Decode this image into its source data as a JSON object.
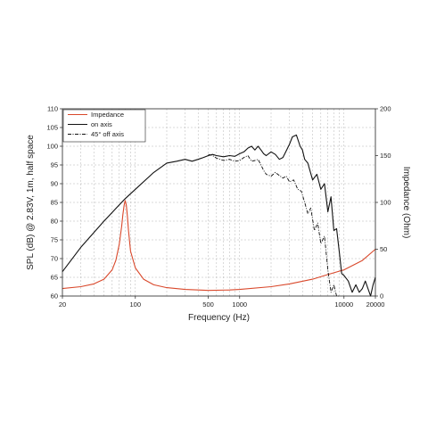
{
  "chart_data": {
    "type": "line",
    "title": "",
    "xlabel": "Frequency (Hz)",
    "ylabel": "SPL (dB) @ 2.83V, 1m, half space",
    "y2label": "Impedance (Ohm)",
    "xscale": "log",
    "xlim": [
      20,
      20000
    ],
    "ylim": [
      60,
      110
    ],
    "y2lim": [
      0,
      200
    ],
    "grid": true,
    "legend_position": "top-left",
    "x_ticks": [
      {
        "value": 20,
        "label": "20"
      },
      {
        "value": 100,
        "label": "100"
      },
      {
        "value": 500,
        "label": "500"
      },
      {
        "value": 1000,
        "label": "1000"
      },
      {
        "value": 10000,
        "label": "10000"
      },
      {
        "value": 20000,
        "label": "20000"
      }
    ],
    "y_ticks": [
      "60",
      "65",
      "70",
      "75",
      "80",
      "85",
      "90",
      "95",
      "100",
      "105",
      "110"
    ],
    "y2_ticks": [
      "0",
      "50",
      "100",
      "150",
      "200"
    ],
    "colors": {
      "impedance": "#d9482b",
      "on_axis": "#111111",
      "off_axis": "#111111",
      "grid": "#b4b4b4"
    },
    "series": [
      {
        "name": "Impedance",
        "axis": "right",
        "style": "solid",
        "x": [
          20,
          30,
          40,
          50,
          60,
          65,
          70,
          74,
          76,
          78,
          80,
          82,
          84,
          86,
          90,
          100,
          120,
          150,
          200,
          300,
          500,
          800,
          1000,
          2000,
          3000,
          5000,
          7000,
          10000,
          15000,
          20000
        ],
        "y": [
          8,
          10,
          13,
          18,
          28,
          38,
          55,
          75,
          87,
          97,
          102,
          97,
          85,
          70,
          48,
          30,
          18,
          12,
          9,
          7,
          6,
          6.5,
          7,
          10,
          13,
          18,
          23,
          28,
          38,
          50
        ]
      },
      {
        "name": "on axis",
        "axis": "left",
        "style": "solid",
        "x": [
          20,
          30,
          50,
          80,
          100,
          150,
          200,
          250,
          300,
          350,
          400,
          450,
          500,
          550,
          600,
          700,
          800,
          900,
          1000,
          1100,
          1200,
          1300,
          1400,
          1500,
          1600,
          1700,
          1800,
          2000,
          2200,
          2400,
          2600,
          2800,
          3000,
          3200,
          3500,
          3800,
          4000,
          4200,
          4500,
          5000,
          5500,
          6000,
          6500,
          7000,
          7500,
          8000,
          8500,
          9000,
          9500,
          10000,
          11000,
          12000,
          13000,
          14000,
          15000,
          16000,
          18000,
          19000,
          20000
        ],
        "y": [
          66.5,
          73,
          80,
          86,
          88.5,
          93,
          95.5,
          96,
          96.5,
          96,
          96.5,
          97,
          97.5,
          97.8,
          97.5,
          97.2,
          97.5,
          97.3,
          98,
          98.5,
          99.5,
          100,
          99,
          100,
          99,
          98,
          97.5,
          98.5,
          97.8,
          96.5,
          97,
          98.8,
          100.5,
          102.5,
          103,
          100,
          99,
          96.5,
          95.5,
          91,
          92.5,
          88.5,
          90,
          82.5,
          86.5,
          77.5,
          78,
          72,
          66,
          65.5,
          64,
          61,
          63,
          61,
          62,
          64,
          60,
          63,
          65
        ]
      },
      {
        "name": "45° off axis",
        "axis": "left",
        "style": "dashdot",
        "x": [
          500,
          550,
          600,
          700,
          800,
          900,
          1000,
          1100,
          1200,
          1300,
          1400,
          1500,
          1600,
          1700,
          1800,
          2000,
          2200,
          2400,
          2600,
          2800,
          3000,
          3300,
          3600,
          3900,
          4200,
          4500,
          4800,
          5200,
          5600,
          6000,
          6500,
          7000,
          7500,
          8000,
          8500,
          9000
        ],
        "y": [
          97.8,
          97.5,
          96.8,
          96.2,
          96.5,
          96,
          96.2,
          97,
          97.5,
          96,
          96.2,
          96.5,
          95,
          93.5,
          92.5,
          92,
          93,
          92.2,
          91.5,
          92,
          90.5,
          91,
          88.5,
          88,
          85,
          82,
          83.5,
          77.5,
          79.5,
          74,
          76,
          67,
          61,
          63,
          60,
          60
        ]
      }
    ]
  }
}
